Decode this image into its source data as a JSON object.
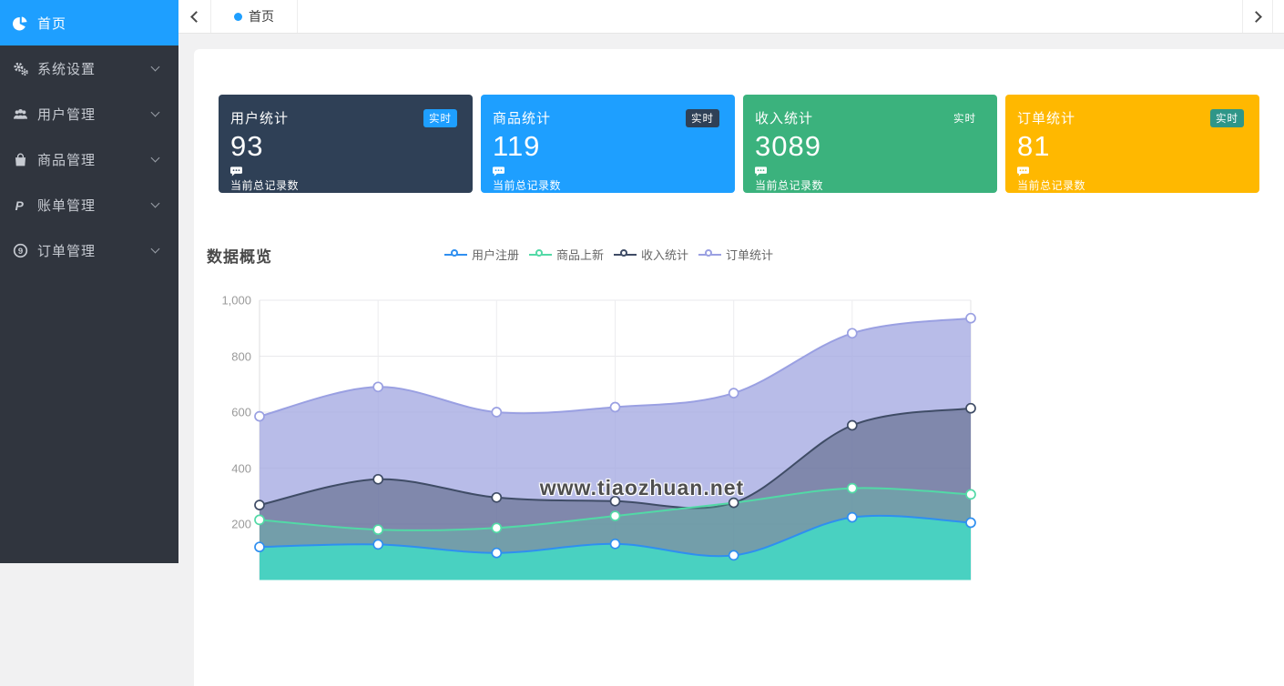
{
  "sidebar": {
    "items": [
      {
        "label": "首页",
        "icon": "pie-chart-icon",
        "active": true,
        "expandable": false
      },
      {
        "label": "系统设置",
        "icon": "gears-icon",
        "active": false,
        "expandable": true
      },
      {
        "label": "用户管理",
        "icon": "users-icon",
        "active": false,
        "expandable": true
      },
      {
        "label": "商品管理",
        "icon": "shopping-bag-icon",
        "active": false,
        "expandable": true
      },
      {
        "label": "账单管理",
        "icon": "paypal-icon",
        "active": false,
        "expandable": true
      },
      {
        "label": "订单管理",
        "icon": "order-circle-icon",
        "active": false,
        "expandable": true
      }
    ]
  },
  "topbar": {
    "tabs": [
      {
        "label": "首页",
        "active": true,
        "dot_color": "#1E9FFF"
      }
    ]
  },
  "stats": {
    "cards": [
      {
        "title": "用户统计",
        "value": "93",
        "badge": "实时",
        "desc": "当前总记录数",
        "color": "#2F4056",
        "badge_color": "#1E9FFF"
      },
      {
        "title": "商品统计",
        "value": "119",
        "badge": "实时",
        "desc": "当前总记录数",
        "color": "#1E9FFF",
        "badge_color": "#2F4056"
      },
      {
        "title": "收入统计",
        "value": "3089",
        "badge": "实时",
        "desc": "当前总记录数",
        "color": "#3BB27D",
        "badge_color": "#3BB27D"
      },
      {
        "title": "订单统计",
        "value": "81",
        "badge": "实时",
        "desc": "当前总记录数",
        "color": "#FFB800",
        "badge_color": "#2F9688"
      }
    ]
  },
  "overview": {
    "title": "数据概览"
  },
  "watermark": "www.tiaozhuan.net",
  "chart_data": {
    "type": "area",
    "title": "数据概览",
    "x_count": 7,
    "x_labels_visible": false,
    "ylim": [
      0,
      1000
    ],
    "grid": true,
    "legend_position": "top-center",
    "y_ticks": [
      {
        "label": "1,000",
        "value": 1000
      },
      {
        "label": "800",
        "value": 800
      },
      {
        "label": "600",
        "value": 600
      },
      {
        "label": "400",
        "value": 400
      },
      {
        "label": "200",
        "value": 200
      }
    ],
    "series": [
      {
        "name": "用户注册",
        "color": "#2F8FF0",
        "fill": "rgba(69,214,195,0.92)",
        "values": [
          118,
          127,
          97,
          129,
          88,
          224,
          205
        ]
      },
      {
        "name": "商品上新",
        "color": "#52D9A6",
        "fill": "rgba(82,217,166,0.28)",
        "values": [
          215,
          180,
          186,
          229,
          276,
          328,
          306
        ]
      },
      {
        "name": "收入统计",
        "color": "#3F4C66",
        "fill": "rgba(59,74,99,0.45)",
        "values": [
          268,
          360,
          295,
          282,
          276,
          553,
          614
        ]
      },
      {
        "name": "订单统计",
        "color": "#9AA0E2",
        "fill": "rgba(164,169,226,0.78)",
        "values": [
          585,
          690,
          600,
          618,
          668,
          882,
          936
        ]
      }
    ],
    "draw_order_back_to_front": [
      "订单统计",
      "收入统计",
      "商品上新",
      "用户注册"
    ]
  }
}
